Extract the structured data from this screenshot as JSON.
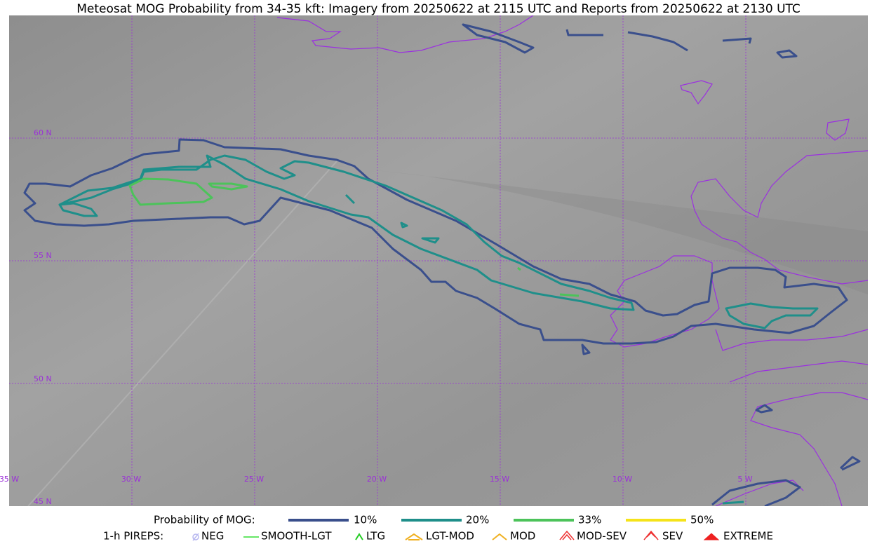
{
  "title": "Meteosat MOG Probability from 34-35 kft: Imagery from 20250622 at 2115 UTC and Reports from 20250622 at 2130 UTC",
  "map": {
    "lat_labels": [
      "60 N",
      "55 N",
      "50 N",
      "45 N"
    ],
    "lon_labels": [
      "35 W",
      "30 W",
      "25 W",
      "20 W",
      "15 W",
      "10 W",
      "5 W"
    ]
  },
  "legend": {
    "title": "Probability of MOG:",
    "items": [
      "10%",
      "20%",
      "33%",
      "50%"
    ]
  },
  "pireps": {
    "title": "1-h PIREPS:",
    "items": [
      "NEG",
      "SMOOTH-LGT",
      "LTG",
      "LGT-MOD",
      "MOD",
      "MOD-SEV",
      "SEV",
      "EXTREME"
    ]
  }
}
